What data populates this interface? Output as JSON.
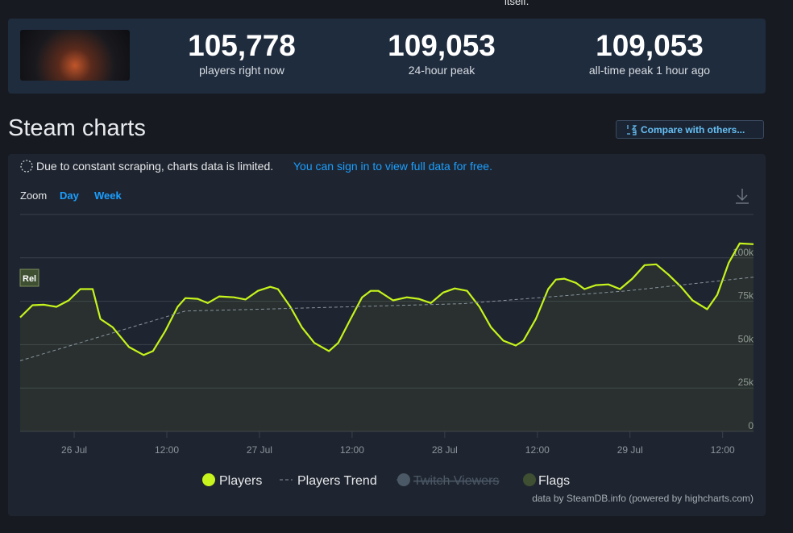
{
  "top_text": "itself.",
  "stats": [
    {
      "value": "105,778",
      "label": "players right now"
    },
    {
      "value": "109,053",
      "label": "24-hour peak"
    },
    {
      "value": "109,053",
      "label": "all-time peak 1 hour ago"
    }
  ],
  "section_title": "Steam charts",
  "compare_button": "Compare with others...",
  "notice": {
    "text": "Due to constant scraping, charts data is limited.",
    "link": "You can sign in to view full data for free."
  },
  "zoom": {
    "label": "Zoom",
    "options": [
      "Day",
      "Week"
    ]
  },
  "chart_data": {
    "type": "line",
    "xlim": [
      -7,
      88
    ],
    "xticks": [
      {
        "value": 0,
        "label": "26 Jul"
      },
      {
        "value": 12,
        "label": "12:00"
      },
      {
        "value": 24,
        "label": "27 Jul"
      },
      {
        "value": 36,
        "label": "12:00"
      },
      {
        "value": 48,
        "label": "28 Jul"
      },
      {
        "value": 60,
        "label": "12:00"
      },
      {
        "value": 72,
        "label": "29 Jul"
      },
      {
        "value": 84,
        "label": "12:00"
      }
    ],
    "ylim": [
      0,
      125000
    ],
    "yticks": [
      0,
      {
        "value": 25000,
        "label": "25k"
      },
      {
        "value": 50000,
        "label": "50k"
      },
      {
        "value": 75000,
        "label": "75k"
      },
      {
        "value": 100000,
        "label": "100k"
      }
    ],
    "grid": true,
    "annotations": [
      {
        "x": -7,
        "text": "Rel"
      }
    ],
    "series": [
      {
        "name": "Players",
        "color": "#c6f41c",
        "x": [
          -7.0,
          -5.4,
          -3.9,
          -2.3,
          -0.7,
          0.8,
          2.4,
          3.4,
          5.0,
          7.1,
          9.0,
          10.2,
          11.8,
          13.4,
          14.4,
          16.0,
          17.3,
          18.8,
          20.7,
          22.2,
          23.8,
          25.4,
          26.4,
          28.0,
          29.5,
          31.1,
          33.0,
          34.2,
          35.8,
          37.3,
          38.4,
          39.4,
          41.3,
          43.1,
          44.6,
          46.2,
          47.8,
          49.3,
          50.9,
          52.5,
          54.0,
          55.6,
          57.2,
          58.2,
          59.8,
          61.4,
          62.4,
          63.5,
          65.0,
          66.1,
          67.6,
          69.2,
          70.7,
          72.3,
          73.9,
          75.4,
          77.0,
          78.6,
          80.1,
          82.0,
          83.3,
          84.8,
          86.2,
          88.0
        ],
        "values": [
          65700,
          72700,
          73000,
          71800,
          75500,
          82000,
          82000,
          64800,
          60000,
          48600,
          44000,
          46300,
          57900,
          71800,
          76800,
          76400,
          74000,
          77800,
          77300,
          76000,
          81000,
          83300,
          82000,
          71800,
          60000,
          51000,
          46300,
          51000,
          64800,
          77300,
          81000,
          81000,
          75500,
          77300,
          76400,
          74000,
          80000,
          82400,
          81000,
          71800,
          60000,
          52300,
          49500,
          52300,
          64800,
          82000,
          87500,
          88000,
          85600,
          82000,
          84300,
          84700,
          82000,
          88000,
          95800,
          96300,
          90300,
          83300,
          75500,
          70400,
          78700,
          97200,
          108300,
          107900
        ]
      },
      {
        "name": "Players Trend",
        "color": "#8a949e",
        "dashed": true,
        "x": [
          -7.0,
          14.4,
          24.0,
          50.3,
          71.6,
          88.0
        ],
        "values": [
          40700,
          69400,
          70400,
          73600,
          81000,
          88900
        ]
      },
      {
        "name": "Twitch Viewers",
        "color": "#4b5866",
        "visible": false
      },
      {
        "name": "Flags",
        "color": "#3e4f32"
      }
    ]
  },
  "credit": "data by SteamDB.info (powered by highcharts.com)"
}
